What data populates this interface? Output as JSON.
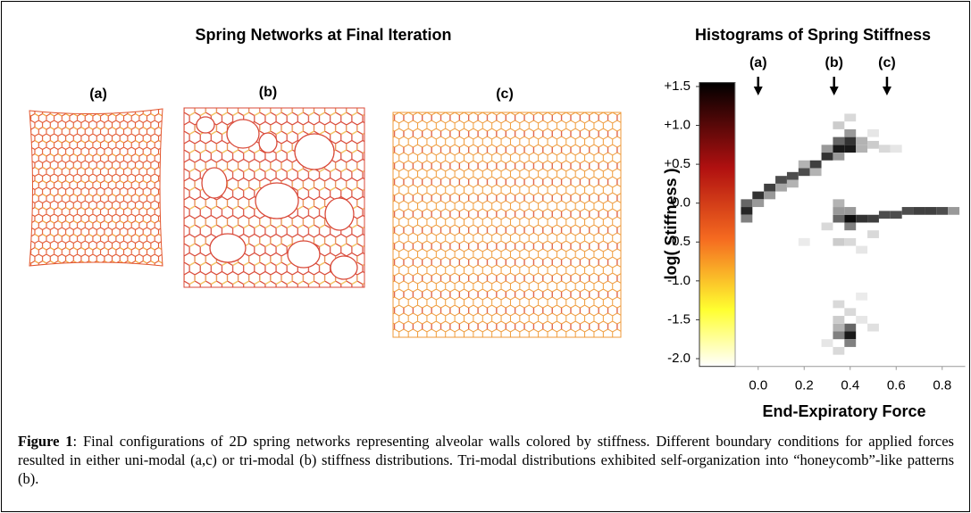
{
  "left_panel": {
    "title": "Spring Networks at Final Iteration",
    "networks": [
      {
        "label": "(a)"
      },
      {
        "label": "(b)"
      },
      {
        "label": "(c)"
      }
    ]
  },
  "chart_data": {
    "type": "heatmap",
    "title": "Histograms of Spring Stiffness",
    "x_label": "End-Expiratory Force",
    "y_label": "log( Stiffness )",
    "xlim": [
      -0.1,
      0.9
    ],
    "ylim": [
      -2.1,
      1.55
    ],
    "xticks": [
      {
        "value": 0,
        "label": "0.0"
      },
      0.2,
      0.4,
      0.6,
      0.8
    ],
    "yticks": [
      {
        "value": 1.5,
        "label": "+1.5"
      },
      {
        "value": 1,
        "label": "+1.0"
      },
      {
        "value": 0.5,
        "label": "+0.5"
      },
      {
        "value": 0,
        "label": "0.0"
      },
      -0.5,
      {
        "value": -1,
        "label": "-1.0"
      },
      -1.5,
      {
        "value": -2,
        "label": "-2.0"
      }
    ],
    "arrows": [
      {
        "label": "(a)",
        "x": 0
      },
      {
        "label": "(b)",
        "x": 0.33
      },
      {
        "label": "(c)",
        "x": 0.56
      }
    ],
    "cell_width": 0.05,
    "cell_height": 0.1,
    "cells": [
      {
        "x": -0.05,
        "y": -0.1,
        "v": 0.85
      },
      {
        "x": -0.05,
        "y": 0.0,
        "v": 0.6
      },
      {
        "x": -0.05,
        "y": -0.2,
        "v": 0.5
      },
      {
        "x": 0.0,
        "y": 0.1,
        "v": 0.8
      },
      {
        "x": 0.0,
        "y": 0.0,
        "v": 0.4
      },
      {
        "x": 0.05,
        "y": 0.2,
        "v": 0.75
      },
      {
        "x": 0.05,
        "y": 0.1,
        "v": 0.4
      },
      {
        "x": 0.1,
        "y": 0.3,
        "v": 0.7
      },
      {
        "x": 0.1,
        "y": 0.2,
        "v": 0.35
      },
      {
        "x": 0.15,
        "y": 0.35,
        "v": 0.7
      },
      {
        "x": 0.15,
        "y": 0.25,
        "v": 0.3
      },
      {
        "x": 0.2,
        "y": 0.4,
        "v": 0.7
      },
      {
        "x": 0.2,
        "y": 0.5,
        "v": 0.3
      },
      {
        "x": 0.25,
        "y": 0.5,
        "v": 0.75
      },
      {
        "x": 0.25,
        "y": 0.4,
        "v": 0.3
      },
      {
        "x": 0.3,
        "y": 0.6,
        "v": 0.8
      },
      {
        "x": 0.3,
        "y": 0.7,
        "v": 0.4
      },
      {
        "x": 0.35,
        "y": 0.7,
        "v": 0.9
      },
      {
        "x": 0.35,
        "y": 0.8,
        "v": 0.6
      },
      {
        "x": 0.35,
        "y": 0.6,
        "v": 0.4
      },
      {
        "x": 0.4,
        "y": 0.8,
        "v": 0.8
      },
      {
        "x": 0.4,
        "y": 0.7,
        "v": 0.9
      },
      {
        "x": 0.4,
        "y": 0.9,
        "v": 0.4
      },
      {
        "x": 0.45,
        "y": 0.8,
        "v": 0.3
      },
      {
        "x": 0.45,
        "y": 0.7,
        "v": 0.3
      },
      {
        "x": 0.5,
        "y": 0.75,
        "v": 0.2
      },
      {
        "x": 0.55,
        "y": 0.7,
        "v": 0.15
      },
      {
        "x": 0.6,
        "y": 0.7,
        "v": 0.1
      },
      {
        "x": 0.35,
        "y": 1.0,
        "v": 0.2
      },
      {
        "x": 0.4,
        "y": 1.1,
        "v": 0.15
      },
      {
        "x": 0.5,
        "y": 0.9,
        "v": 0.1
      },
      {
        "x": 0.35,
        "y": -0.2,
        "v": 0.6
      },
      {
        "x": 0.35,
        "y": -0.1,
        "v": 0.4
      },
      {
        "x": 0.35,
        "y": 0.0,
        "v": 0.3
      },
      {
        "x": 0.4,
        "y": -0.2,
        "v": 0.95
      },
      {
        "x": 0.4,
        "y": -0.3,
        "v": 0.5
      },
      {
        "x": 0.4,
        "y": -0.1,
        "v": 0.4
      },
      {
        "x": 0.45,
        "y": -0.2,
        "v": 0.8
      },
      {
        "x": 0.5,
        "y": -0.2,
        "v": 0.75
      },
      {
        "x": 0.55,
        "y": -0.15,
        "v": 0.7
      },
      {
        "x": 0.6,
        "y": -0.15,
        "v": 0.7
      },
      {
        "x": 0.65,
        "y": -0.1,
        "v": 0.7
      },
      {
        "x": 0.7,
        "y": -0.1,
        "v": 0.75
      },
      {
        "x": 0.75,
        "y": -0.1,
        "v": 0.75
      },
      {
        "x": 0.8,
        "y": -0.1,
        "v": 0.7
      },
      {
        "x": 0.85,
        "y": -0.1,
        "v": 0.4
      },
      {
        "x": 0.3,
        "y": -0.3,
        "v": 0.15
      },
      {
        "x": 0.35,
        "y": -0.5,
        "v": 0.2
      },
      {
        "x": 0.4,
        "y": -0.5,
        "v": 0.15
      },
      {
        "x": 0.45,
        "y": -0.6,
        "v": 0.1
      },
      {
        "x": 0.2,
        "y": -0.5,
        "v": 0.08
      },
      {
        "x": 0.5,
        "y": -0.4,
        "v": 0.15
      },
      {
        "x": 0.35,
        "y": -1.7,
        "v": 0.5
      },
      {
        "x": 0.4,
        "y": -1.7,
        "v": 0.9
      },
      {
        "x": 0.4,
        "y": -1.6,
        "v": 0.6
      },
      {
        "x": 0.35,
        "y": -1.6,
        "v": 0.3
      },
      {
        "x": 0.4,
        "y": -1.8,
        "v": 0.5
      },
      {
        "x": 0.35,
        "y": -1.5,
        "v": 0.2
      },
      {
        "x": 0.35,
        "y": -1.3,
        "v": 0.15
      },
      {
        "x": 0.4,
        "y": -1.4,
        "v": 0.15
      },
      {
        "x": 0.35,
        "y": -1.9,
        "v": 0.15
      },
      {
        "x": 0.3,
        "y": -1.8,
        "v": 0.1
      },
      {
        "x": 0.45,
        "y": -1.5,
        "v": 0.1
      },
      {
        "x": 0.5,
        "y": -1.6,
        "v": 0.12
      },
      {
        "x": 0.45,
        "y": -1.2,
        "v": 0.08
      }
    ]
  },
  "caption": {
    "label": "Figure 1",
    "text": ":  Final configurations of 2D spring networks representing alveolar walls colored by stiffness. Different boundary conditions for applied forces resulted in either uni-modal (a,c) or tri-modal (b) stiffness distributions.  Tri-modal distributions exhibited self-organization into “honeycomb”-like patterns (b)."
  }
}
